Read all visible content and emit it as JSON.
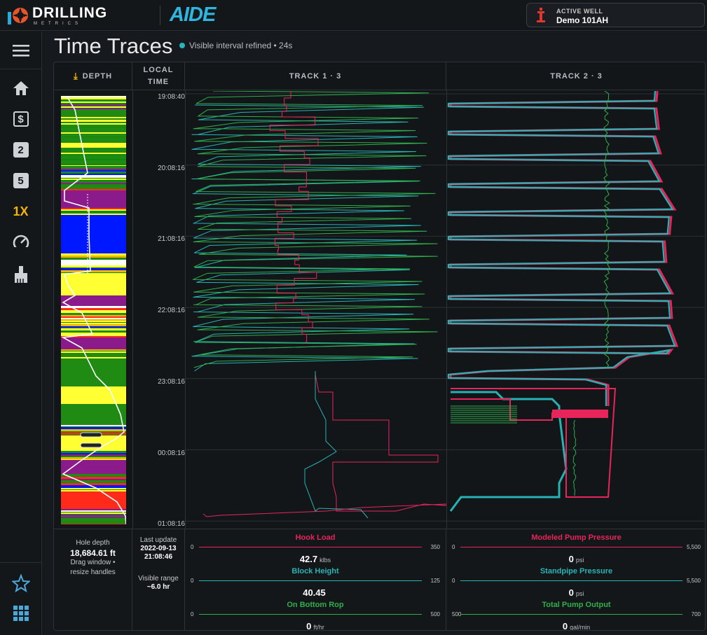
{
  "header": {
    "logo_word": "DRILLING",
    "logo_sub": "METRICS",
    "app_name": "AIDE",
    "active_well_label": "ACTIVE WELL",
    "active_well_name": "Demo 101AH"
  },
  "page": {
    "title": "Time Traces",
    "status": "Visible interval refined • 24s"
  },
  "sidebar": {
    "items": [
      {
        "name": "menu",
        "icon": "hamburger-icon"
      },
      {
        "name": "home",
        "icon": "home-icon"
      },
      {
        "name": "dollar",
        "icon": "dollar-box-icon",
        "label": "$"
      },
      {
        "name": "two",
        "icon": "two-box-icon",
        "label": "2"
      },
      {
        "name": "five",
        "icon": "five-box-icon",
        "label": "5"
      },
      {
        "name": "1x",
        "icon": "1x-icon",
        "label": "1X"
      },
      {
        "name": "gauge",
        "icon": "speedometer-icon"
      },
      {
        "name": "brush",
        "icon": "brush-icon"
      },
      {
        "name": "star",
        "icon": "star-icon"
      },
      {
        "name": "apps",
        "icon": "grid-icon"
      }
    ]
  },
  "columns": {
    "depth": "DEPTH",
    "local_time_line1": "LOCAL",
    "local_time_line2": "TIME",
    "track1": "TRACK 1 · 3",
    "track2": "TRACK 2 · 3"
  },
  "time_ticks": [
    "19:08:40",
    "20:08:16",
    "21:08:16",
    "22:08:16",
    "23:08:16",
    "00:08:16",
    "01:08:16"
  ],
  "footer": {
    "hole_depth_label": "Hole depth",
    "hole_depth_value": "18,684.61 ft",
    "hole_hint1": "Drag window •",
    "hole_hint2": "resize handles",
    "last_update_label": "Last update",
    "last_update_date": "2022-09-13",
    "last_update_time": "21:08:46",
    "visible_range_label": "Visible range",
    "visible_range_value": "~6.0 hr"
  },
  "gauges_track1": [
    {
      "name": "Hook Load",
      "min": "0",
      "max": "350",
      "value": "42.7",
      "unit": "klbs",
      "color": "#e8245b"
    },
    {
      "name": "Block Height",
      "min": "0",
      "max": "125",
      "value": "40.45",
      "unit": "",
      "color": "#27b3b3"
    },
    {
      "name": "On Bottom Rop",
      "min": "0",
      "max": "500",
      "value": "0",
      "unit": "ft/hr",
      "color": "#2fae4a"
    }
  ],
  "gauges_track2": [
    {
      "name": "Modeled Pump Pressure",
      "min": "0",
      "max": "5,500",
      "value": "0",
      "unit": "psi",
      "color": "#e8245b"
    },
    {
      "name": "Standpipe Pressure",
      "min": "0",
      "max": "5,500",
      "value": "0",
      "unit": "psi",
      "color": "#27b3b3"
    },
    {
      "name": "Total Pump Output",
      "min": "500",
      "max": "700",
      "value": "0",
      "unit": "gal/min",
      "color": "#2fae4a"
    }
  ],
  "colors": {
    "hook_load": "#e8245b",
    "block_height": "#27b3b3",
    "rop": "#2fae4a",
    "accent": "#f4b400"
  }
}
